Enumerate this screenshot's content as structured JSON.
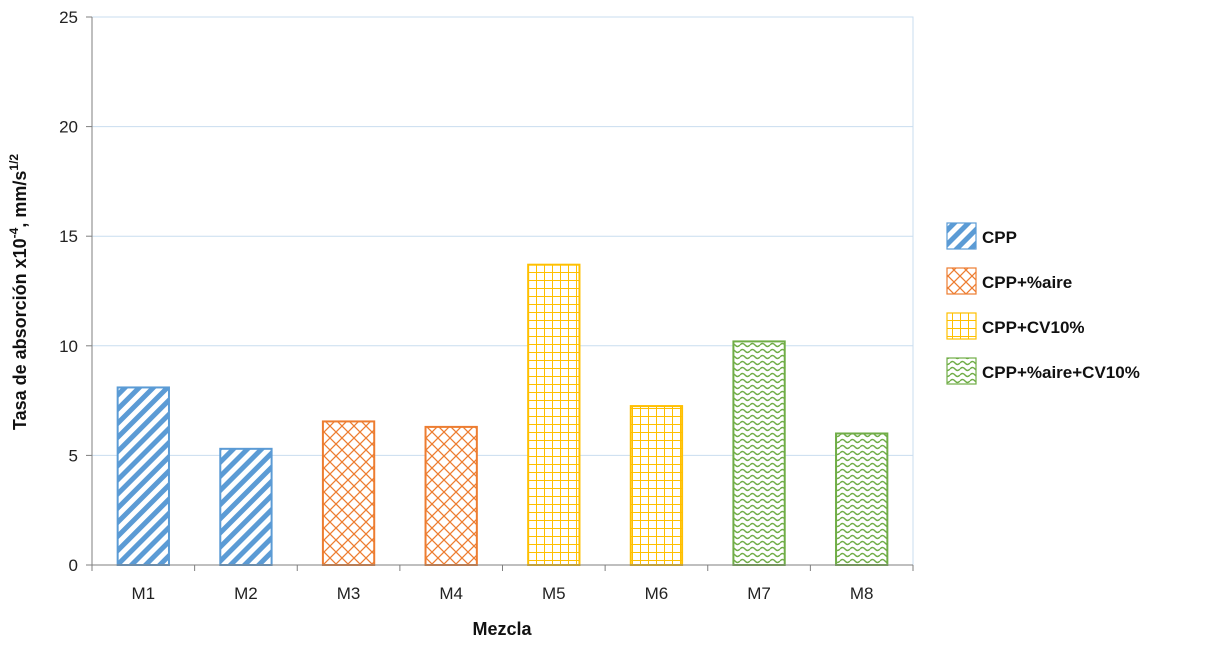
{
  "chart_data": {
    "type": "bar",
    "categories": [
      "M1",
      "M2",
      "M3",
      "M4",
      "M5",
      "M6",
      "M7",
      "M8"
    ],
    "values": [
      8.1,
      5.3,
      6.55,
      6.3,
      13.7,
      7.25,
      10.2,
      6.0
    ],
    "groups": [
      "CPP",
      "CPP",
      "CPP+%aire",
      "CPP+%aire",
      "CPP+CV10%",
      "CPP+CV10%",
      "CPP+%aire+CV10%",
      "CPP+%aire+CV10%"
    ],
    "series": [
      {
        "name": "CPP",
        "color": "#5B9BD5",
        "pattern": "diagonal-stripes"
      },
      {
        "name": "CPP+%aire",
        "color": "#ED7D31",
        "pattern": "diagonal-crosshatch"
      },
      {
        "name": "CPP+CV10%",
        "color": "#FFC000",
        "pattern": "grid"
      },
      {
        "name": "CPP+%aire+CV10%",
        "color": "#70AD47",
        "pattern": "wave"
      }
    ],
    "xlabel": "Mezcla",
    "ylabel_main": "Tasa de absorción x10",
    "ylabel_exp1": "-4",
    "ylabel_mid": ", mm/s",
    "ylabel_exp2": "1/2",
    "ylim": [
      0,
      25
    ],
    "yticks": [
      "0",
      "5",
      "10",
      "15",
      "20",
      "25"
    ],
    "grid": true,
    "legend_position": "right"
  }
}
